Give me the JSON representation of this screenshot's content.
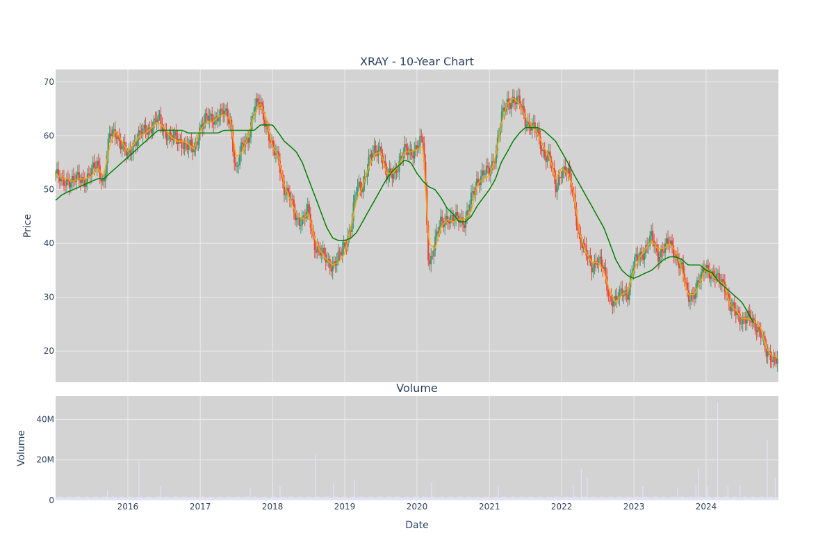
{
  "colors": {
    "panel_bg": "#d3d3d3",
    "grid": "#ebebeb",
    "text": "#2a3f5f",
    "candle_up": "#3d9970",
    "candle_down": "#e8453c",
    "ma_short": "#ffa500",
    "ma_long": "#008000",
    "volume_bar": "#e3e3f7"
  },
  "chart_data": [
    {
      "type": "candlestick",
      "title": "XRAY - 10-Year Chart",
      "xlabel": "",
      "ylabel": "Price",
      "xlim": [
        "2015-01-01",
        "2024-12-31"
      ],
      "ylim": [
        14.2,
        72.3
      ],
      "x_ticks": [
        "2016",
        "2017",
        "2018",
        "2019",
        "2020",
        "2021",
        "2022",
        "2023",
        "2024"
      ],
      "y_ticks": [
        20,
        30,
        40,
        50,
        60,
        70
      ],
      "grid": true,
      "legend": "none",
      "close_series": {
        "x": [
          "2015-01-01",
          "2015-02-01",
          "2015-03-01",
          "2015-04-01",
          "2015-05-01",
          "2015-06-01",
          "2015-07-01",
          "2015-08-01",
          "2015-09-01",
          "2015-10-01",
          "2015-11-01",
          "2015-12-01",
          "2016-01-01",
          "2016-02-01",
          "2016-03-01",
          "2016-04-01",
          "2016-05-01",
          "2016-06-01",
          "2016-07-01",
          "2016-08-01",
          "2016-09-01",
          "2016-10-01",
          "2016-11-01",
          "2016-12-01",
          "2017-01-01",
          "2017-02-01",
          "2017-03-01",
          "2017-04-01",
          "2017-05-01",
          "2017-06-01",
          "2017-07-01",
          "2017-08-01",
          "2017-09-01",
          "2017-10-01",
          "2017-11-01",
          "2017-12-01",
          "2018-01-01",
          "2018-02-01",
          "2018-03-01",
          "2018-04-01",
          "2018-05-01",
          "2018-06-01",
          "2018-07-01",
          "2018-08-01",
          "2018-09-01",
          "2018-10-01",
          "2018-11-01",
          "2018-12-01",
          "2019-01-01",
          "2019-02-01",
          "2019-03-01",
          "2019-04-01",
          "2019-05-01",
          "2019-06-01",
          "2019-07-01",
          "2019-08-01",
          "2019-09-01",
          "2019-10-01",
          "2019-11-01",
          "2019-12-01",
          "2020-01-01",
          "2020-02-01",
          "2020-03-01",
          "2020-04-01",
          "2020-05-01",
          "2020-06-01",
          "2020-07-01",
          "2020-08-01",
          "2020-09-01",
          "2020-10-01",
          "2020-11-01",
          "2020-12-01",
          "2021-01-01",
          "2021-02-01",
          "2021-03-01",
          "2021-04-01",
          "2021-05-01",
          "2021-06-01",
          "2021-07-01",
          "2021-08-01",
          "2021-09-01",
          "2021-10-01",
          "2021-11-01",
          "2021-12-01",
          "2022-01-01",
          "2022-02-01",
          "2022-03-01",
          "2022-04-01",
          "2022-05-01",
          "2022-06-01",
          "2022-07-01",
          "2022-08-01",
          "2022-09-01",
          "2022-10-01",
          "2022-11-01",
          "2022-12-01",
          "2023-01-01",
          "2023-02-01",
          "2023-03-01",
          "2023-04-01",
          "2023-05-01",
          "2023-06-01",
          "2023-07-01",
          "2023-08-01",
          "2023-09-01",
          "2023-10-01",
          "2023-11-01",
          "2023-12-01",
          "2024-01-01",
          "2024-02-01",
          "2024-03-01",
          "2024-04-01",
          "2024-05-01",
          "2024-06-01",
          "2024-07-01",
          "2024-08-01",
          "2024-09-01",
          "2024-10-01",
          "2024-11-01",
          "2024-12-01"
        ],
        "values": [
          53,
          51,
          52,
          51.5,
          52,
          52,
          53,
          55,
          51,
          60,
          61,
          58,
          56,
          59,
          60,
          61,
          62,
          63,
          61,
          60,
          59,
          59,
          58,
          57,
          62,
          63,
          63,
          64,
          64,
          63,
          53,
          58,
          60,
          65,
          66,
          62,
          57,
          56,
          50,
          48,
          45,
          44,
          46,
          40,
          38,
          37,
          36,
          37,
          40,
          43,
          50,
          51,
          55,
          57,
          58,
          52,
          53,
          55,
          57,
          57,
          58,
          59,
          36,
          40,
          44,
          45,
          44,
          45,
          44,
          48,
          52,
          53,
          53,
          57,
          63,
          66,
          67,
          66,
          63,
          62,
          60,
          57,
          56,
          50,
          54,
          53,
          49,
          41,
          38,
          36,
          37,
          35,
          30,
          29,
          31,
          31,
          36,
          38,
          39,
          41,
          38,
          39,
          40,
          38,
          35,
          30,
          31,
          33,
          36,
          34,
          33,
          33,
          28,
          27,
          26,
          26,
          25,
          24,
          19,
          19
        ]
      },
      "series": [
        {
          "name": "",
          "color": "#ffa500",
          "values": [
            53,
            52,
            52,
            51.5,
            52,
            52,
            52.5,
            54,
            52.5,
            58,
            61,
            59,
            57,
            58.5,
            60,
            60.5,
            61.5,
            62.5,
            61.5,
            60,
            59,
            59,
            58.5,
            57.5,
            61,
            62.5,
            62.5,
            63.5,
            64,
            63,
            56,
            57,
            60,
            64,
            66,
            63,
            58,
            56,
            51,
            48,
            45.5,
            44.5,
            45.5,
            41,
            38.5,
            37,
            36,
            36.5,
            38,
            43,
            48,
            50.5,
            54,
            56.5,
            57,
            53,
            53,
            54.5,
            57,
            57,
            57.5,
            58,
            40,
            39,
            43,
            44.5,
            44,
            44.5,
            44.5,
            46,
            51,
            52,
            52.5,
            56,
            62,
            66,
            67,
            66,
            63.5,
            62,
            60.5,
            58,
            56,
            52,
            54,
            53,
            50,
            42,
            38.5,
            36.5,
            36.5,
            35,
            31,
            29,
            30.5,
            31,
            35,
            37.5,
            39,
            40.5,
            39,
            39,
            40,
            38.5,
            35,
            30.5,
            30.5,
            32.5,
            35.5,
            34,
            33,
            32.5,
            28.5,
            27.5,
            26,
            26,
            25.5,
            24.5,
            20.5,
            19
          ]
        },
        {
          "name": "",
          "color": "#008000",
          "values": [
            48,
            49,
            49.5,
            50,
            50.5,
            51,
            51.5,
            52,
            52,
            53,
            54,
            55,
            56,
            57,
            58,
            59,
            60,
            61,
            61,
            61,
            61,
            61,
            60.5,
            60.5,
            60.5,
            60.5,
            60.5,
            60.5,
            61,
            61,
            61,
            61,
            61,
            61,
            62,
            62,
            62,
            60.5,
            59,
            58,
            57,
            55,
            52,
            49,
            46,
            43,
            41,
            40.5,
            40.5,
            41,
            42,
            44,
            46,
            48,
            50,
            52,
            53.5,
            54.5,
            55.5,
            55,
            53,
            51.5,
            50.5,
            50,
            48.5,
            46.5,
            45.5,
            44,
            44,
            45,
            47,
            48.5,
            50,
            52,
            55,
            57,
            59,
            60.5,
            61.5,
            61.5,
            61.5,
            61,
            60,
            59,
            57,
            55,
            53,
            51,
            49,
            47,
            45,
            43,
            40,
            37,
            35,
            34,
            33.5,
            34,
            34.5,
            35,
            36,
            37,
            37.5,
            37.5,
            37,
            36,
            36,
            36,
            35,
            34.5,
            33,
            32,
            31,
            30,
            29,
            27,
            25
          ]
        }
      ]
    },
    {
      "type": "bar",
      "title": "Volume",
      "xlabel": "Date",
      "ylabel": "Volume",
      "xlim": [
        "2015-01-01",
        "2024-12-31"
      ],
      "ylim": [
        0,
        51500000
      ],
      "y_ticks": [
        0,
        20000000,
        40000000
      ],
      "y_tick_labels": [
        "0",
        "20M",
        "40M"
      ],
      "x_ticks": [
        "2016",
        "2017",
        "2018",
        "2019",
        "2020",
        "2021",
        "2022",
        "2023",
        "2024"
      ],
      "grid": true,
      "baseline": 1500000,
      "spikes": [
        {
          "x": "2015-09-20",
          "y": 5000000
        },
        {
          "x": "2016-02-26",
          "y": 19500000
        },
        {
          "x": "2016-06-15",
          "y": 7000000
        },
        {
          "x": "2017-09-10",
          "y": 6000000
        },
        {
          "x": "2018-02-08",
          "y": 7000000
        },
        {
          "x": "2018-08-07",
          "y": 22500000
        },
        {
          "x": "2018-11-05",
          "y": 8500000
        },
        {
          "x": "2019-02-20",
          "y": 10000000
        },
        {
          "x": "2020-03-15",
          "y": 9000000
        },
        {
          "x": "2021-02-15",
          "y": 7000000
        },
        {
          "x": "2022-03-01",
          "y": 7500000
        },
        {
          "x": "2022-04-10",
          "y": 15500000
        },
        {
          "x": "2022-05-10",
          "y": 11000000
        },
        {
          "x": "2023-02-15",
          "y": 7000000
        },
        {
          "x": "2023-08-10",
          "y": 6000000
        },
        {
          "x": "2023-11-10",
          "y": 7500000
        },
        {
          "x": "2023-11-25",
          "y": 16000000
        },
        {
          "x": "2024-01-10",
          "y": 6500000
        },
        {
          "x": "2024-02-28",
          "y": 48500000
        },
        {
          "x": "2024-04-20",
          "y": 7000000
        },
        {
          "x": "2024-06-20",
          "y": 7500000
        },
        {
          "x": "2024-11-05",
          "y": 30000000
        },
        {
          "x": "2024-12-15",
          "y": 11000000
        }
      ]
    }
  ]
}
